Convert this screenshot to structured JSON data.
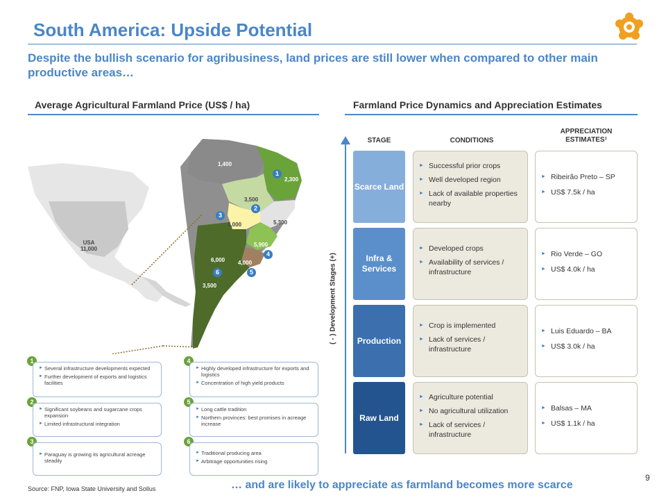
{
  "header": {
    "title": "South America: Upside Potential",
    "subtitle": "Despite the bullish scenario for agribusiness, land prices are still lower when compared to other main productive areas…"
  },
  "left_section": {
    "heading": "Average Agricultural Farmland Price (US$ / ha)",
    "map_labels": {
      "usa": "USA\n11,000",
      "usa_line1": "USA",
      "usa_line2": "11,000",
      "north": "1,400",
      "northeast": "2,300",
      "center": "3,500",
      "east": "5,300",
      "west_center": "3,000",
      "south_east": "5,900",
      "parana": "4,000",
      "argentina_north": "6,000",
      "argentina_south": "3,500"
    },
    "map_badges": [
      "1",
      "2",
      "3",
      "4",
      "5",
      "6"
    ],
    "boxes": [
      {
        "num": "1",
        "items": [
          "Several infrastructure developments expected",
          "Further development of exports and logistics facilities"
        ]
      },
      {
        "num": "2",
        "items": [
          "Significant soybeans and sugarcane crops expansion",
          "Limited infrastructural integration"
        ]
      },
      {
        "num": "3",
        "items": [
          "Paraguay is growing its agricultural acreage steadily"
        ]
      },
      {
        "num": "4",
        "items": [
          "Highly developed infrastructure for exports and logistics",
          "Concentration of high yield products"
        ]
      },
      {
        "num": "5",
        "items": [
          "Long cattle tradition",
          "Northern provinces: best promises in acreage increase"
        ]
      },
      {
        "num": "6",
        "items": [
          "Traditional producing area",
          "Arbitrage opportunities rising"
        ]
      }
    ],
    "source": "Source: FNP, Iowa State University and Sollus"
  },
  "right_section": {
    "heading": "Farmland Price Dynamics and Appreciation Estimates",
    "col_stage": "STAGE",
    "col_conditions": "CONDITIONS",
    "col_appreciation": "APPRECIATION ESTIMATES¹",
    "axis_label": "( - )   Development Stages   (+)",
    "rows": [
      {
        "stage": "Scarce Land",
        "color": "#86aedb",
        "conditions": [
          "Successful prior crops",
          "Well developed region",
          "Lack of available properties nearby"
        ],
        "appreciation": [
          "Ribeirão Preto – SP",
          "US$ 7.5k / ha"
        ]
      },
      {
        "stage": "Infra & Services",
        "color": "#5b8fcb",
        "conditions": [
          "Developed crops",
          "Availability of services / infrastructure"
        ],
        "appreciation": [
          "Rio Verde – GO",
          "US$ 4.0k / ha"
        ]
      },
      {
        "stage": "Production",
        "color": "#3b6fae",
        "conditions": [
          "Crop is implemented",
          "Lack of services / infrastructure"
        ],
        "appreciation": [
          "Luis Eduardo – BA",
          "US$ 3.0k / ha"
        ]
      },
      {
        "stage": "Raw Land",
        "color": "#23548f",
        "conditions": [
          "Agriculture potential",
          "No agricultural utilization",
          "Lack of services / infrastructure"
        ],
        "appreciation": [
          "Balsas – MA",
          "US$ 1.1k / ha"
        ]
      }
    ]
  },
  "footer": {
    "text": "… and are likely to appreciate as farmland becomes more scarce",
    "page_number": "9"
  }
}
